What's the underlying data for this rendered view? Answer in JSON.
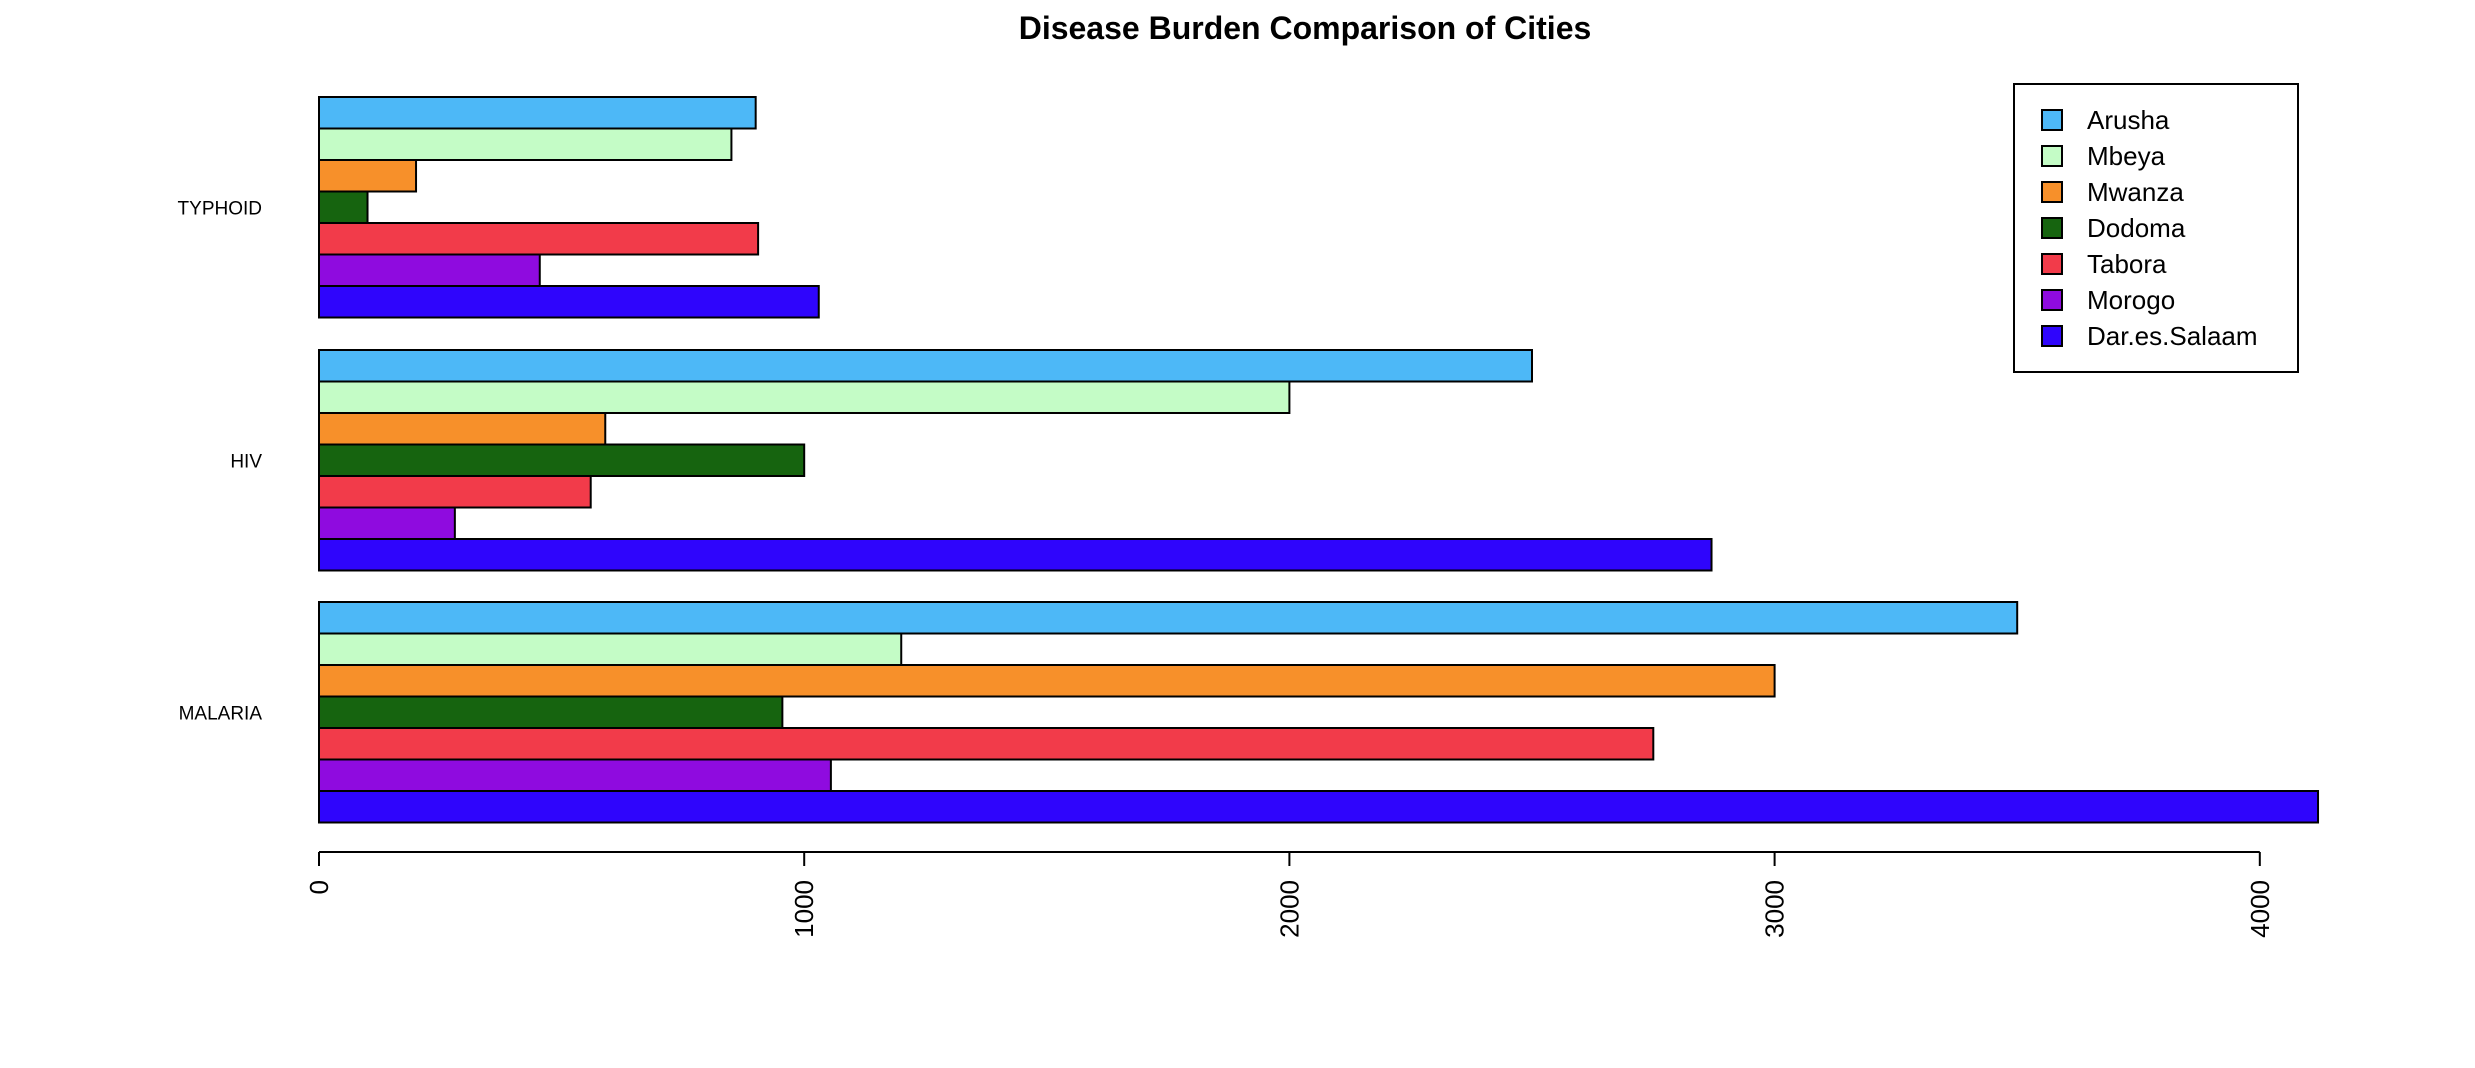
{
  "chart_data": {
    "type": "bar",
    "orientation": "horizontal",
    "title": "Disease Burden Comparison of Cities",
    "xlabel": "",
    "ylabel": "",
    "categories": [
      "TYPHOID",
      "HIV",
      "MALARIA"
    ],
    "xlim": [
      0,
      4100
    ],
    "xticks": [
      "0",
      "1000",
      "2000",
      "3000",
      "4000"
    ],
    "legend_position": "top-right",
    "grid": false,
    "series": [
      {
        "name": "Arusha",
        "color": "#4DB8F7",
        "values": [
          900,
          2500,
          3500
        ]
      },
      {
        "name": "Mbeya",
        "color": "#C4FCC6",
        "values": [
          850,
          2000,
          1200
        ]
      },
      {
        "name": "Mwanza",
        "color": "#F7902A",
        "values": [
          200,
          590,
          3000
        ]
      },
      {
        "name": "Dodoma",
        "color": "#16640F",
        "values": [
          100,
          1000,
          955
        ]
      },
      {
        "name": "Tabora",
        "color": "#F23B4A",
        "values": [
          905,
          560,
          2750
        ]
      },
      {
        "name": "Morogo",
        "color": "#8F0BDF",
        "values": [
          455,
          280,
          1055
        ]
      },
      {
        "name": "Dar.es.Salaam",
        "color": "#2F05FC",
        "values": [
          1030,
          2870,
          4120
        ]
      }
    ]
  }
}
